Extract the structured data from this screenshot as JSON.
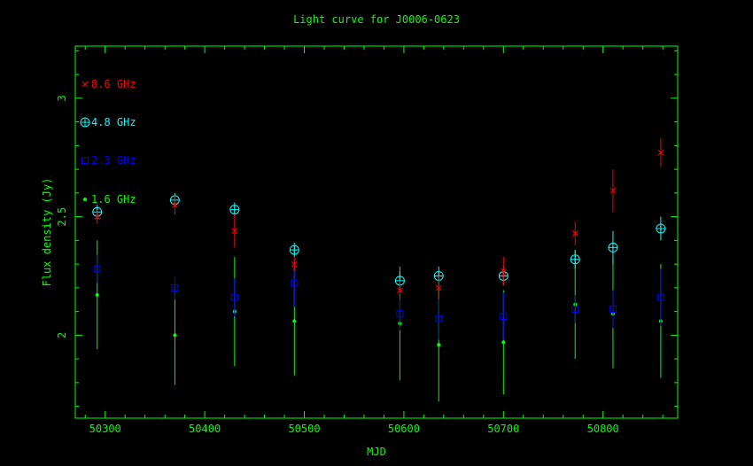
{
  "chart_data": {
    "type": "scatter",
    "title": "Light curve for J0006-0623",
    "xlabel": "MJD",
    "ylabel": "Flux density (Jy)",
    "xlim": [
      50270,
      50875
    ],
    "ylim": [
      1.65,
      3.22
    ],
    "x_ticks": [
      50300,
      50400,
      50500,
      50600,
      50700,
      50800
    ],
    "y_ticks": [
      2,
      2.5,
      3
    ],
    "grid": false,
    "legend_position": "top-left",
    "colors": {
      "axes": "#00ff00",
      "background": "#000000"
    },
    "series": [
      {
        "name": "8.6 GHz",
        "color": "#ff0000",
        "marker": "cross-x",
        "x": [
          50292,
          50370,
          50430,
          50490,
          50596,
          50635,
          50700,
          50772,
          50810,
          50858
        ],
        "y": [
          2.5,
          2.55,
          2.44,
          2.3,
          2.19,
          2.2,
          2.27,
          2.43,
          2.61,
          2.77
        ],
        "err": [
          0.03,
          0.04,
          0.07,
          0.03,
          0.04,
          0.05,
          0.06,
          0.05,
          0.09,
          0.06
        ]
      },
      {
        "name": "4.8 GHz",
        "color": "#00ffff",
        "marker": "circle-plus",
        "x": [
          50292,
          50370,
          50430,
          50490,
          50596,
          50635,
          50700,
          50772,
          50810,
          50858
        ],
        "y": [
          2.52,
          2.57,
          2.53,
          2.36,
          2.23,
          2.25,
          2.25,
          2.32,
          2.37,
          2.45
        ],
        "err": [
          0.03,
          0.03,
          0.03,
          0.03,
          0.04,
          0.04,
          0.04,
          0.04,
          0.07,
          0.05
        ]
      },
      {
        "name": "2.3 GHz",
        "color": "#0000ff",
        "marker": "square",
        "x": [
          50292,
          50370,
          50430,
          50490,
          50596,
          50635,
          50700,
          50772,
          50810,
          50858
        ],
        "y": [
          2.28,
          2.2,
          2.16,
          2.22,
          2.09,
          2.07,
          2.08,
          2.11,
          2.11,
          2.16
        ],
        "err": [
          0.06,
          0.05,
          0.08,
          0.1,
          0.07,
          0.09,
          0.1,
          0.06,
          0.08,
          0.12
        ]
      },
      {
        "name": "1.6 GHz",
        "color": "#00ff00",
        "marker": "dot",
        "x": [
          50292,
          50370,
          50430,
          50490,
          50596,
          50635,
          50700,
          50772,
          50810,
          50858
        ],
        "y": [
          2.17,
          2.0,
          2.1,
          2.06,
          2.05,
          1.96,
          1.97,
          2.13,
          2.09,
          2.06
        ],
        "err": [
          0.23,
          0.21,
          0.23,
          0.23,
          0.24,
          0.24,
          0.22,
          0.23,
          0.23,
          0.24
        ]
      }
    ]
  }
}
